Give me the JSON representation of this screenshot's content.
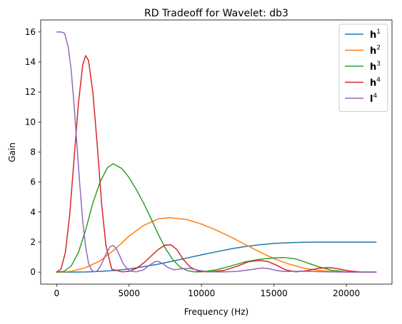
{
  "chart_data": {
    "type": "line",
    "title": "RD Tradeoff for Wavelet: db3",
    "xlabel": "Frequency (Hz)",
    "ylabel": "Gain",
    "xlim": [
      -1100,
      23150
    ],
    "ylim": [
      -0.8,
      16.8
    ],
    "xticks": [
      0,
      5000,
      10000,
      15000,
      20000
    ],
    "yticks": [
      0,
      2,
      4,
      6,
      8,
      10,
      12,
      14,
      16
    ],
    "grid": false,
    "legend_position": "top-right",
    "series": [
      {
        "name": "h1",
        "legend_base": "h",
        "legend_sup": "1",
        "color": "#1f77b4",
        "x": [
          0,
          1000,
          2000,
          3000,
          4000,
          5000,
          6000,
          7000,
          8000,
          9000,
          10000,
          11000,
          12000,
          13000,
          14000,
          15000,
          16000,
          17000,
          18000,
          19000,
          20000,
          21000,
          22050
        ],
        "y": [
          0.0,
          0.0,
          0.01,
          0.05,
          0.11,
          0.21,
          0.36,
          0.53,
          0.73,
          0.94,
          1.15,
          1.35,
          1.54,
          1.7,
          1.82,
          1.91,
          1.96,
          1.99,
          2.0,
          2.0,
          2.0,
          2.0,
          2.0
        ]
      },
      {
        "name": "h2",
        "legend_base": "h",
        "legend_sup": "2",
        "color": "#ff7f0e",
        "x": [
          0,
          1000,
          2000,
          3000,
          4000,
          5000,
          6000,
          7000,
          7800,
          9000,
          10000,
          11000,
          12000,
          13000,
          14000,
          15000,
          16000,
          17000,
          18000,
          19000,
          20000,
          21000,
          22050
        ],
        "y": [
          0.0,
          0.05,
          0.3,
          0.75,
          1.5,
          2.4,
          3.1,
          3.55,
          3.63,
          3.5,
          3.2,
          2.8,
          2.35,
          1.85,
          1.35,
          0.9,
          0.55,
          0.28,
          0.12,
          0.04,
          0.01,
          0.0,
          0.0
        ]
      },
      {
        "name": "h3",
        "legend_base": "h",
        "legend_sup": "3",
        "color": "#2ca02c",
        "x": [
          0,
          500,
          1000,
          1500,
          2000,
          2500,
          3000,
          3500,
          3900,
          4500,
          5000,
          5500,
          6000,
          6500,
          7000,
          7500,
          8000,
          8500,
          9000,
          9500,
          10000,
          11000,
          12000,
          13000,
          14000,
          15000,
          15800,
          16500,
          17000,
          18000,
          19000,
          20000,
          21000,
          22050
        ],
        "y": [
          0.0,
          0.05,
          0.4,
          1.3,
          2.8,
          4.6,
          6.0,
          6.95,
          7.22,
          6.9,
          6.3,
          5.5,
          4.6,
          3.6,
          2.55,
          1.6,
          0.85,
          0.35,
          0.1,
          0.02,
          0.02,
          0.15,
          0.4,
          0.68,
          0.85,
          0.95,
          0.97,
          0.88,
          0.72,
          0.38,
          0.12,
          0.02,
          0.0,
          0.0
        ]
      },
      {
        "name": "h4",
        "legend_base": "h",
        "legend_sup": "4",
        "color": "#d62728",
        "x": [
          0,
          300,
          600,
          900,
          1200,
          1500,
          1800,
          2000,
          2200,
          2500,
          2800,
          3100,
          3400,
          3800,
          4500,
          5000,
          5500,
          6000,
          6500,
          7000,
          7500,
          7900,
          8300,
          8700,
          9200,
          9800,
          10500,
          11500,
          12500,
          13200,
          14000,
          14600,
          15200,
          15800,
          16500,
          17300,
          18000,
          18600,
          19000,
          19500,
          20200,
          21000,
          22050
        ],
        "y": [
          0.0,
          0.2,
          1.3,
          3.8,
          7.5,
          11.2,
          13.8,
          14.42,
          14.1,
          12.0,
          8.5,
          4.6,
          1.8,
          0.2,
          0.02,
          0.05,
          0.25,
          0.6,
          1.05,
          1.5,
          1.8,
          1.82,
          1.5,
          0.9,
          0.35,
          0.05,
          0.02,
          0.1,
          0.4,
          0.68,
          0.78,
          0.7,
          0.45,
          0.15,
          0.02,
          0.1,
          0.24,
          0.3,
          0.29,
          0.2,
          0.08,
          0.01,
          0.0
        ]
      },
      {
        "name": "l4",
        "legend_base": "l",
        "legend_sup": "4",
        "color": "#9467bd",
        "x": [
          0,
          300,
          550,
          800,
          1000,
          1200,
          1400,
          1600,
          1800,
          2000,
          2200,
          2400,
          2600,
          2800,
          3000,
          3200,
          3450,
          3700,
          3900,
          4100,
          4350,
          4600,
          5000,
          5500,
          6000,
          6400,
          6800,
          7000,
          7300,
          7700,
          8100,
          8600,
          9200,
          9800,
          10500,
          11500,
          12500,
          13500,
          14200,
          14700,
          15200,
          15700,
          16200,
          17000,
          18000,
          19000,
          20000,
          21000,
          22050
        ],
        "y": [
          16.0,
          16.0,
          15.9,
          15.0,
          13.5,
          11.2,
          8.5,
          5.8,
          3.4,
          1.7,
          0.6,
          0.15,
          0.02,
          0.08,
          0.35,
          0.75,
          1.3,
          1.7,
          1.78,
          1.6,
          1.1,
          0.55,
          0.08,
          0.02,
          0.15,
          0.45,
          0.7,
          0.72,
          0.58,
          0.3,
          0.15,
          0.22,
          0.25,
          0.12,
          0.02,
          0.01,
          0.05,
          0.18,
          0.28,
          0.22,
          0.1,
          0.04,
          0.05,
          0.06,
          0.03,
          0.01,
          0.0,
          0.0,
          0.0
        ]
      }
    ]
  }
}
